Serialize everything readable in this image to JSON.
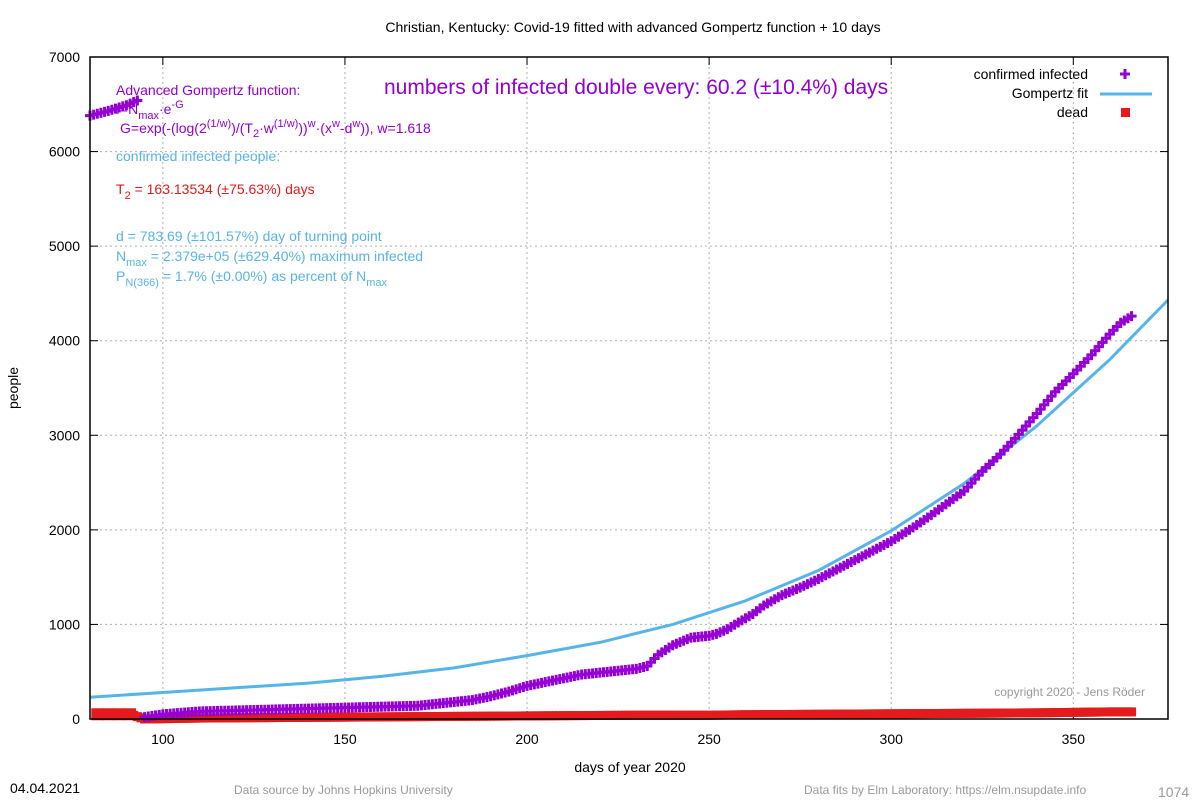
{
  "chart_data": {
    "type": "line",
    "title": "Christian,  Kentucky: Covid-19 fitted with advanced Gompertz function + 10 days",
    "xlabel": "days of year 2020",
    "ylabel": "people",
    "xlim": [
      80,
      376
    ],
    "ylim": [
      0,
      7000
    ],
    "x_ticks": [
      100,
      150,
      200,
      250,
      300,
      350
    ],
    "y_ticks": [
      0,
      1000,
      2000,
      3000,
      4000,
      5000,
      6000,
      7000
    ],
    "grid": true,
    "legend_position": "top-right",
    "series": [
      {
        "name": "confirmed infected",
        "marker": "plus",
        "color": "#9400d3",
        "x": [
          80,
          85,
          90,
          93,
          95,
          100,
          110,
          120,
          130,
          140,
          150,
          160,
          170,
          175,
          180,
          185,
          190,
          195,
          200,
          205,
          210,
          215,
          220,
          225,
          230,
          233,
          236,
          240,
          245,
          250,
          252,
          255,
          258,
          262,
          265,
          270,
          275,
          280,
          285,
          290,
          295,
          300,
          305,
          310,
          315,
          320,
          325,
          330,
          335,
          340,
          345,
          350,
          355,
          360,
          363,
          366
        ],
        "y": [
          6380,
          6430,
          6490,
          6540,
          20,
          50,
          80,
          90,
          100,
          110,
          120,
          130,
          140,
          160,
          180,
          200,
          240,
          290,
          350,
          390,
          430,
          470,
          490,
          510,
          530,
          560,
          680,
          780,
          860,
          880,
          900,
          950,
          1020,
          1110,
          1200,
          1310,
          1390,
          1480,
          1580,
          1680,
          1780,
          1880,
          2000,
          2130,
          2270,
          2410,
          2620,
          2800,
          3010,
          3230,
          3460,
          3650,
          3850,
          4070,
          4190,
          4260
        ]
      },
      {
        "name": "Gompertz fit",
        "color": "#56b4e9",
        "x": [
          80,
          100,
          120,
          140,
          160,
          180,
          200,
          220,
          240,
          260,
          280,
          300,
          320,
          340,
          360,
          376
        ],
        "y": [
          230,
          280,
          330,
          380,
          450,
          540,
          670,
          810,
          1000,
          1250,
          1570,
          1990,
          2490,
          3100,
          3800,
          4430
        ]
      },
      {
        "name": "dead",
        "marker": "square",
        "color": "#e41a1c",
        "x": [
          82,
          85,
          88,
          91,
          95,
          110,
          130,
          150,
          170,
          190,
          210,
          230,
          250,
          260,
          280,
          300,
          320,
          340,
          350,
          360,
          366
        ],
        "y": [
          50,
          50,
          50,
          50,
          0,
          10,
          15,
          20,
          25,
          30,
          35,
          40,
          40,
          45,
          50,
          55,
          60,
          65,
          70,
          75,
          75
        ]
      }
    ],
    "annotations": {
      "headline": "numbers of infected double every: 60.2 (±10.4%) days",
      "formula_title": "Advanced Gompertz function:",
      "formula_1_a": "f=N",
      "formula_1_sub": "max",
      "formula_1_b": "·e",
      "formula_1_sup": "-G",
      "formula_2_a": "G=exp(-(log(2",
      "formula_2_sup1": "(1/w)",
      "formula_2_b": ")/(T",
      "formula_2_sub": "2",
      "formula_2_c": "·w",
      "formula_2_sup2": "(1/w)",
      "formula_2_d": "))",
      "formula_2_sup3": "w",
      "formula_2_e": "·(x",
      "formula_2_sup4": "w",
      "formula_2_f": "-d",
      "formula_2_sup5": "w",
      "formula_2_g": ")), w=1.618",
      "confirmed_header": "confirmed infected people:",
      "t2_a": "T",
      "t2_sub": "2",
      "t2_b": " = 163.13534 (±75.63%) days",
      "turning_point": "d = 783.69 (±101.57%) day of turning point",
      "nmax_a": "N",
      "nmax_sub": "max",
      "nmax_b": " = 2.379e+05 (±629.40%) maximum infected",
      "pn_a": "P",
      "pn_sub": "N(366)",
      "pn_b": " = 1.7% (±0.00%) as percent of N",
      "pn_sub2": "max",
      "copyright": "copyright 2020 - Jens Röder"
    }
  },
  "footer": {
    "date": "04.04.2021",
    "source": "Data source by Johns Hopkins University",
    "fits": "Data fits by Elm Laboratory: https://elm.nsupdate.info",
    "code": "1074"
  }
}
